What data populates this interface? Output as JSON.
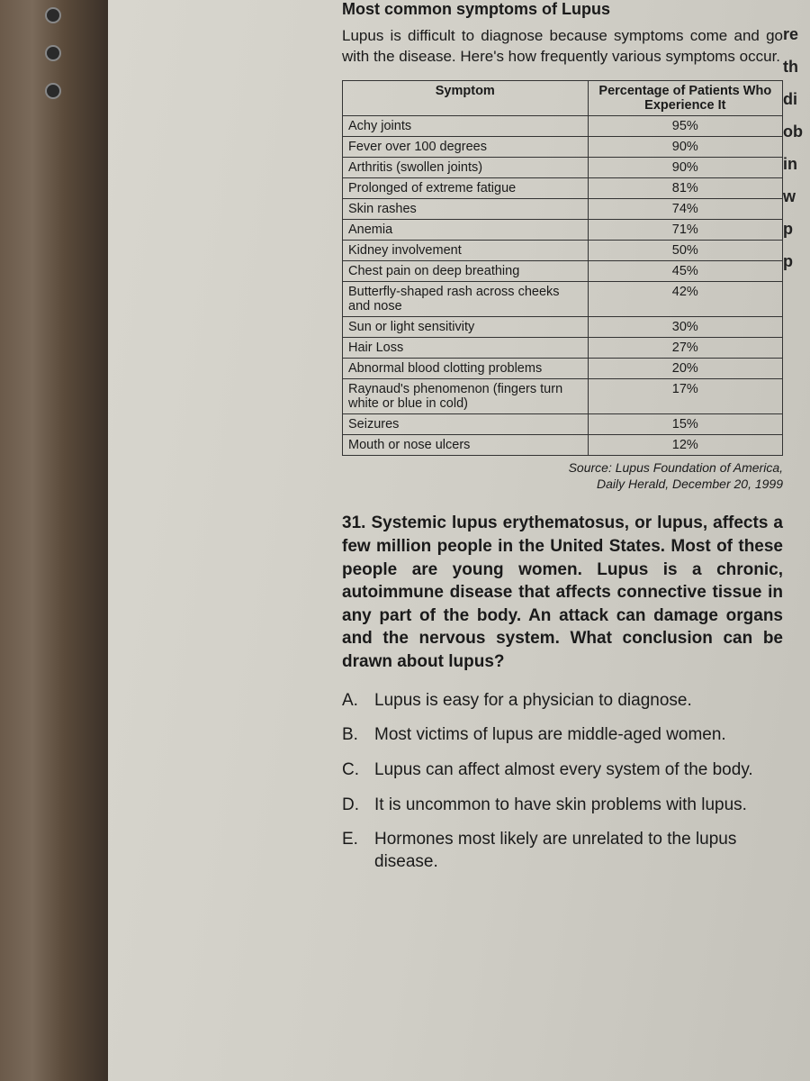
{
  "heading": "Most common symptoms of Lupus",
  "intro": "Lupus is difficult to diagnose because symptoms come and go with the disease. Here's how frequently various symptoms occur.",
  "table": {
    "col1": "Symptom",
    "col2": "Percentage of Patients Who Experience It",
    "rows": [
      {
        "symptom": "Achy joints",
        "pct": "95%"
      },
      {
        "symptom": "Fever over 100 degrees",
        "pct": "90%"
      },
      {
        "symptom": "Arthritis (swollen joints)",
        "pct": "90%"
      },
      {
        "symptom": "Prolonged of extreme fatigue",
        "pct": "81%"
      },
      {
        "symptom": "Skin rashes",
        "pct": "74%"
      },
      {
        "symptom": "Anemia",
        "pct": "71%"
      },
      {
        "symptom": "Kidney involvement",
        "pct": "50%"
      },
      {
        "symptom": "Chest pain on deep breathing",
        "pct": "45%"
      },
      {
        "symptom": "Butterfly-shaped rash across cheeks and nose",
        "pct": "42%"
      },
      {
        "symptom": "Sun or light sensitivity",
        "pct": "30%"
      },
      {
        "symptom": "Hair Loss",
        "pct": "27%"
      },
      {
        "symptom": "Abnormal blood clotting problems",
        "pct": "20%"
      },
      {
        "symptom": "Raynaud's phenomenon (fingers turn white or blue in cold)",
        "pct": "17%"
      },
      {
        "symptom": "Seizures",
        "pct": "15%"
      },
      {
        "symptom": "Mouth or nose ulcers",
        "pct": "12%"
      }
    ]
  },
  "source_line1": "Source: Lupus Foundation of America,",
  "source_line2": "Daily Herald, December 20, 1999",
  "question_number": "31.",
  "question_text": "Systemic lupus erythematosus, or lupus, affects a few million people in the United States. Most of these people are young women. Lupus is a chronic, autoimmune disease that affects connective tissue in any part of the body. An attack can damage organs and the nervous system. What conclusion can be drawn about lupus?",
  "options": [
    {
      "letter": "A.",
      "text": "Lupus is easy for a physician to diagnose."
    },
    {
      "letter": "B.",
      "text": "Most victims of lupus are middle-aged women."
    },
    {
      "letter": "C.",
      "text": "Lupus can affect almost every system of the body."
    },
    {
      "letter": "D.",
      "text": "It is uncommon to have skin problems with lupus."
    },
    {
      "letter": "E.",
      "text": "Hormones most likely are unrelated to the lupus disease."
    }
  ],
  "right_fragments": [
    "re",
    "th",
    "di",
    "ob",
    "in",
    "w",
    "p",
    "p"
  ]
}
